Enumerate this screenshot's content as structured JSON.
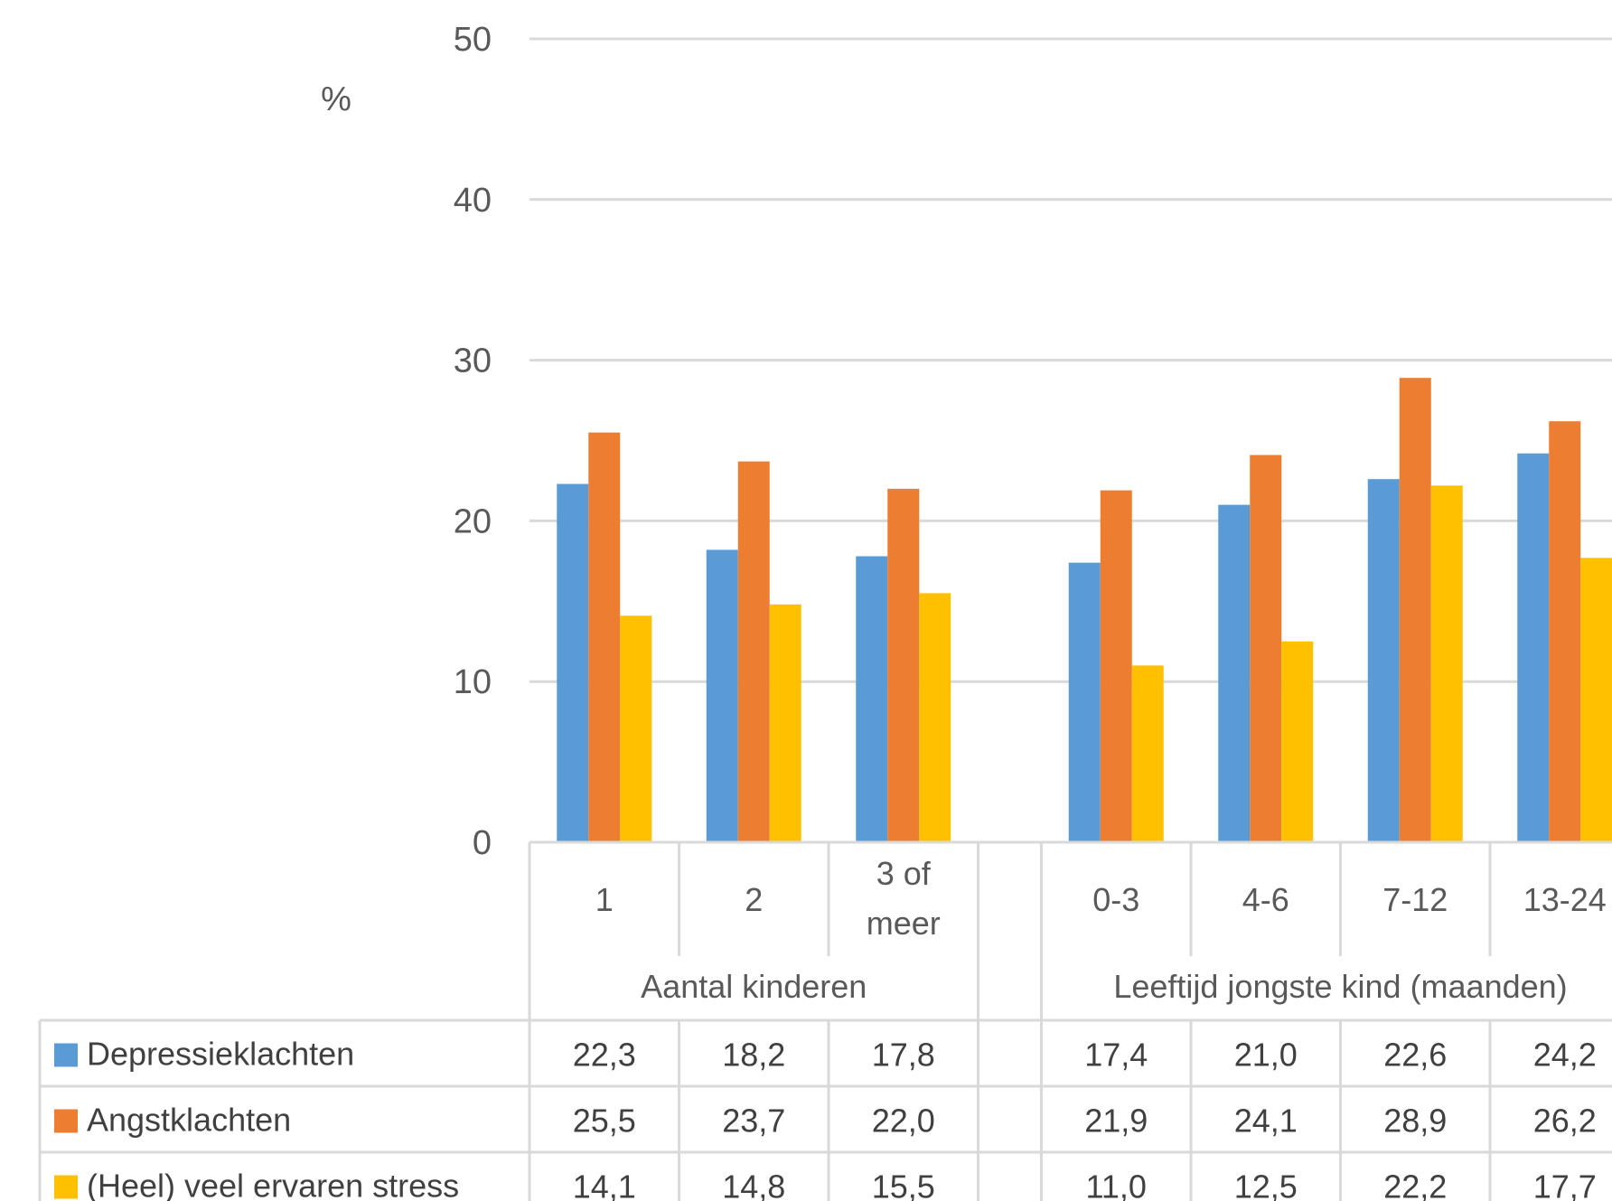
{
  "chart_data": {
    "type": "bar",
    "unit_label": "%",
    "ylim": [
      0,
      50
    ],
    "yticks": [
      "0",
      "10",
      "20",
      "30",
      "40",
      "50"
    ],
    "grid": true,
    "groups": [
      {
        "label": "Aantal kinderen",
        "categories": [
          "1",
          "2",
          "3 of meer"
        ]
      },
      {
        "label": "Leeftijd jongste kind (maanden)",
        "categories": [
          "0-3",
          "4-6",
          "7-12",
          "13-24"
        ]
      }
    ],
    "series": [
      {
        "name": "Depressieklachten",
        "color": "#5B9BD5",
        "values": [
          22.3,
          18.2,
          17.8,
          17.4,
          21.0,
          22.6,
          24.2
        ],
        "labels": [
          "22,3",
          "18,2",
          "17,8",
          "17,4",
          "21,0",
          "22,6",
          "24,2"
        ]
      },
      {
        "name": "Angstklachten",
        "color": "#ED7D31",
        "values": [
          25.5,
          23.7,
          22.0,
          21.9,
          24.1,
          28.9,
          26.2
        ],
        "labels": [
          "25,5",
          "23,7",
          "22,0",
          "21,9",
          "24,1",
          "28,9",
          "26,2"
        ]
      },
      {
        "name": "(Heel) veel ervaren stress",
        "color": "#FFC000",
        "values": [
          14.1,
          14.8,
          15.5,
          11.0,
          12.5,
          22.2,
          17.7
        ],
        "labels": [
          "14,1",
          "14,8",
          "15,5",
          "11,0",
          "12,5",
          "22,2",
          "17,7"
        ]
      }
    ]
  }
}
